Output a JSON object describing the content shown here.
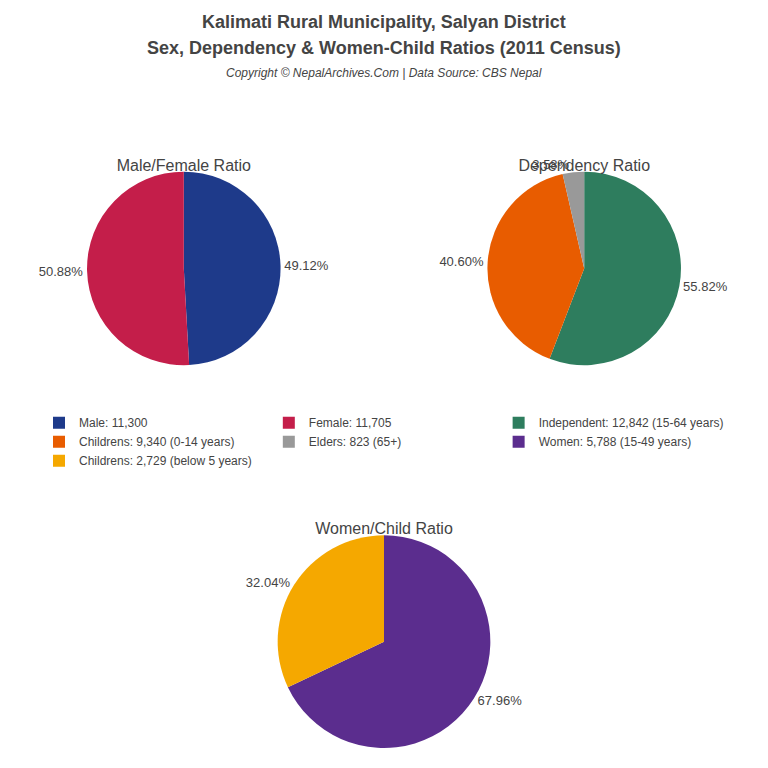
{
  "title": "Kalimati Rural Municipality, Salyan District",
  "subtitle": "Sex, Dependency & Women-Child Ratios (2011 Census)",
  "annotations": [
    "Copyright © NepalArchives.Com | Data Source: CBS Nepal"
  ],
  "legend": "center",
  "chart_data": [
    {
      "type": "pie",
      "title": "Male/Female Ratio",
      "categories": [
        "Male: 11,300",
        "Female: 11,705"
      ],
      "values": [
        49.12,
        50.88
      ],
      "value_labels": [
        "49.12%",
        "50.88%"
      ],
      "colors": [
        "#1e3a8a",
        "#c41e4a"
      ],
      "data_labels": true
    },
    {
      "type": "pie",
      "title": "Dependency Ratio",
      "categories": [
        "Independent: 12,842 (15-64 years)",
        "Childrens: 9,340 (0-14 years)",
        "Elders: 823 (65+)"
      ],
      "values": [
        55.82,
        40.6,
        3.58
      ],
      "value_labels": [
        "55.82%",
        "40.60%",
        "3.58%"
      ],
      "colors": [
        "#2e7d5e",
        "#e85c00",
        "#999999"
      ],
      "data_labels": true
    },
    {
      "type": "pie",
      "title": "Women/Child Ratio",
      "categories": [
        "Women: 5,788 (15-49 years)",
        "Childrens: 2,729 (below 5 years)"
      ],
      "values": [
        67.96,
        32.04
      ],
      "value_labels": [
        "67.96%",
        "32.04%"
      ],
      "colors": [
        "#5b2d8e",
        "#f5a800"
      ],
      "data_labels": true
    }
  ]
}
